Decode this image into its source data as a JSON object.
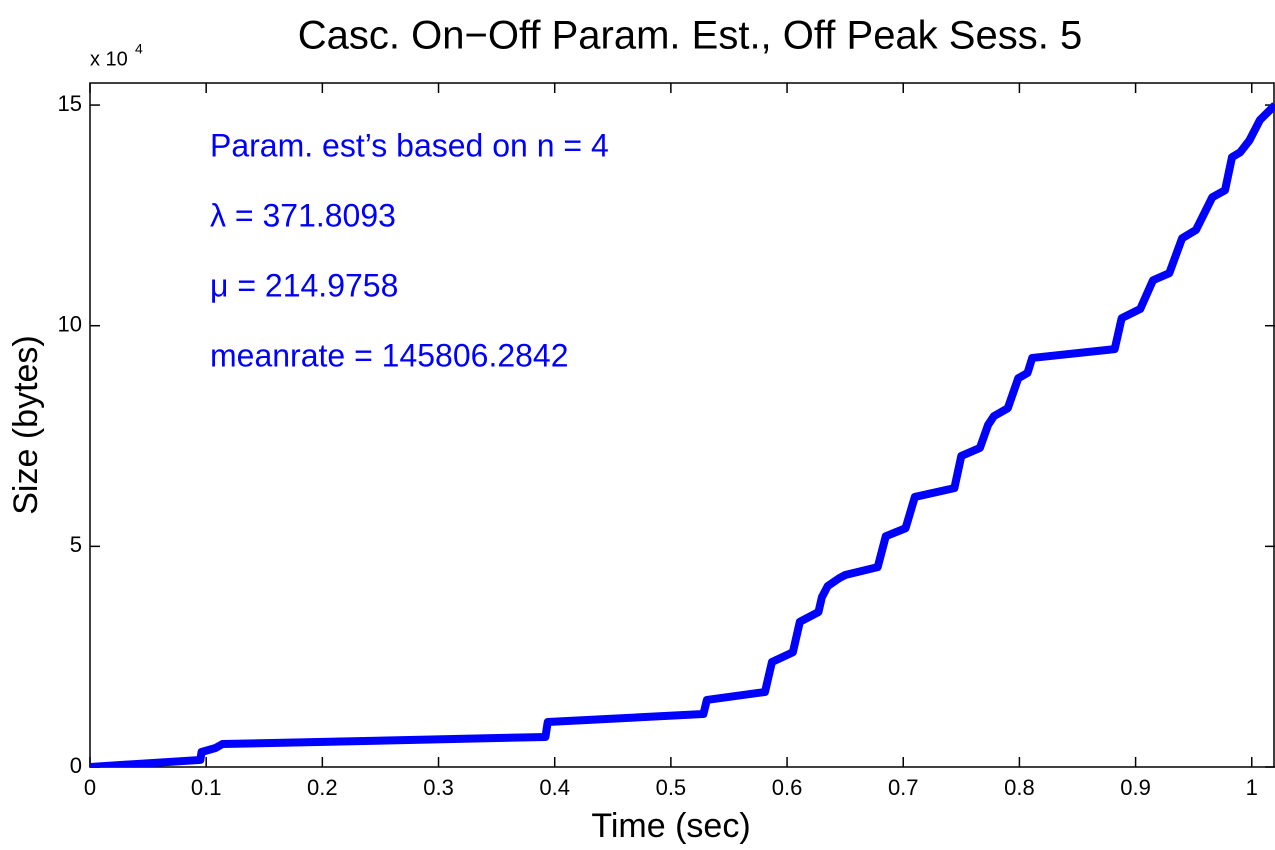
{
  "chart_data": {
    "type": "line",
    "title": "Casc. On−Off Param. Est., Off Peak Sess. 5",
    "x_label": "Time (sec)",
    "y_label": "Size (bytes)",
    "y_multiplier": {
      "base": "x 10",
      "exponent": "4"
    },
    "annotations": [
      "Param. est’s based on n = 4",
      "λ = 371.8093",
      "μ = 214.9758",
      "meanrate = 145806.2842"
    ],
    "annotation_color": "#0000ff",
    "xlim": [
      0,
      1.02
    ],
    "ylim": [
      0,
      155000
    ],
    "xticks": [
      0,
      0.1,
      0.2,
      0.3,
      0.4,
      0.5,
      0.6,
      0.7,
      0.8,
      0.9,
      1
    ],
    "yticks": [
      {
        "value": 0,
        "label": "0"
      },
      {
        "value": 50000,
        "label": "5"
      },
      {
        "value": 100000,
        "label": "10"
      },
      {
        "value": 150000,
        "label": "15"
      }
    ],
    "grid": false,
    "x": [
      0,
      0.095,
      0.096,
      0.108,
      0.114,
      0.392,
      0.394,
      0.528,
      0.531,
      0.581,
      0.587,
      0.605,
      0.611,
      0.627,
      0.63,
      0.635,
      0.645,
      0.65,
      0.678,
      0.685,
      0.702,
      0.71,
      0.744,
      0.75,
      0.766,
      0.773,
      0.778,
      0.79,
      0.799,
      0.807,
      0.811,
      0.882,
      0.888,
      0.904,
      0.915,
      0.929,
      0.94,
      0.952,
      0.966,
      0.977,
      0.983,
      0.99,
      0.998,
      1.007,
      1.02
    ],
    "series": [
      {
        "name": "Size",
        "color": "#0000ff",
        "values": [
          0,
          1600,
          3400,
          4300,
          5200,
          6800,
          10200,
          12000,
          15200,
          17000,
          23800,
          26000,
          32900,
          35100,
          38500,
          41000,
          42800,
          43500,
          45300,
          52300,
          54100,
          61200,
          63200,
          70500,
          72300,
          77500,
          79500,
          81300,
          88100,
          89300,
          92700,
          94700,
          101700,
          103800,
          110300,
          111900,
          119800,
          121700,
          129100,
          130700,
          138200,
          139300,
          142000,
          146600,
          150000
        ]
      }
    ]
  }
}
